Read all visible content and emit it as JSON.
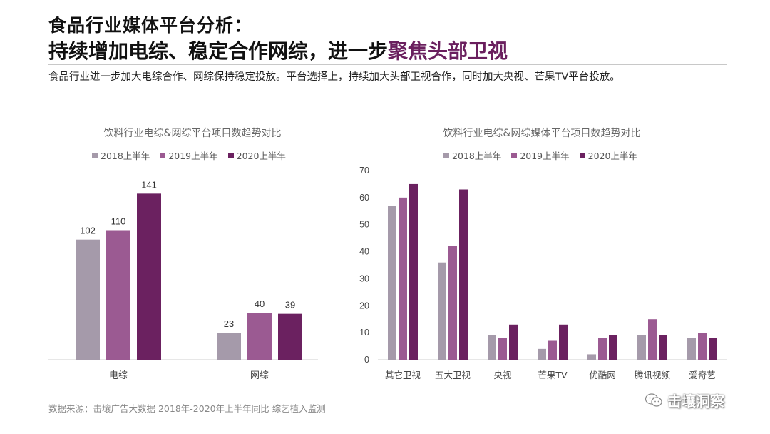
{
  "header": {
    "title_line1": "食品行业媒体平台分析：",
    "title_line2_plain": "持续增加电综、稳定合作网综，进一步",
    "title_line2_highlight": "聚焦头部卫视",
    "subtitle": "食品行业进一步加大电综合作、网综保持稳定投放。平台选择上，持续加大头部卫视合作，同时加大央视、芒果TV平台投放。"
  },
  "footer": {
    "source": "数据来源：击壤广告大数据 2018年-2020年上半年同比 综艺植入监测",
    "watermark": "击壤洞察",
    "watermark_icon": "wechat-icon"
  },
  "colors": {
    "s2018": "#a59aaa",
    "s2019": "#9b5a92",
    "s2020": "#6b2160",
    "highlight": "#6a1f5e"
  },
  "chart_data": [
    {
      "type": "bar",
      "title": "饮料行业电综&网综平台项目数趋势对比",
      "categories": [
        "电综",
        "网综"
      ],
      "series": [
        {
          "name": "2018上半年",
          "values": [
            102,
            23
          ]
        },
        {
          "name": "2019上半年",
          "values": [
            110,
            40
          ]
        },
        {
          "name": "2020上半年",
          "values": [
            141,
            39
          ]
        }
      ],
      "data_labels": true,
      "y_axis_visible": false,
      "grid": false,
      "legend_position": "top"
    },
    {
      "type": "bar",
      "title": "饮料行业电综&网综媒体平台项目数趋势对比",
      "categories": [
        "其它卫视",
        "五大卫视",
        "央视",
        "芒果TV",
        "优酷网",
        "腾讯视频",
        "爱奇艺"
      ],
      "series": [
        {
          "name": "2018上半年",
          "values": [
            57,
            36,
            9,
            4,
            2,
            9,
            8
          ]
        },
        {
          "name": "2019上半年",
          "values": [
            60,
            42,
            8,
            7,
            8,
            15,
            10
          ]
        },
        {
          "name": "2020上半年",
          "values": [
            65,
            63,
            13,
            13,
            9,
            9,
            8
          ]
        }
      ],
      "ylim": [
        0,
        70
      ],
      "yticks": [
        0,
        10,
        20,
        30,
        40,
        50,
        60,
        70
      ],
      "data_labels": false,
      "grid": false,
      "legend_position": "top"
    }
  ]
}
